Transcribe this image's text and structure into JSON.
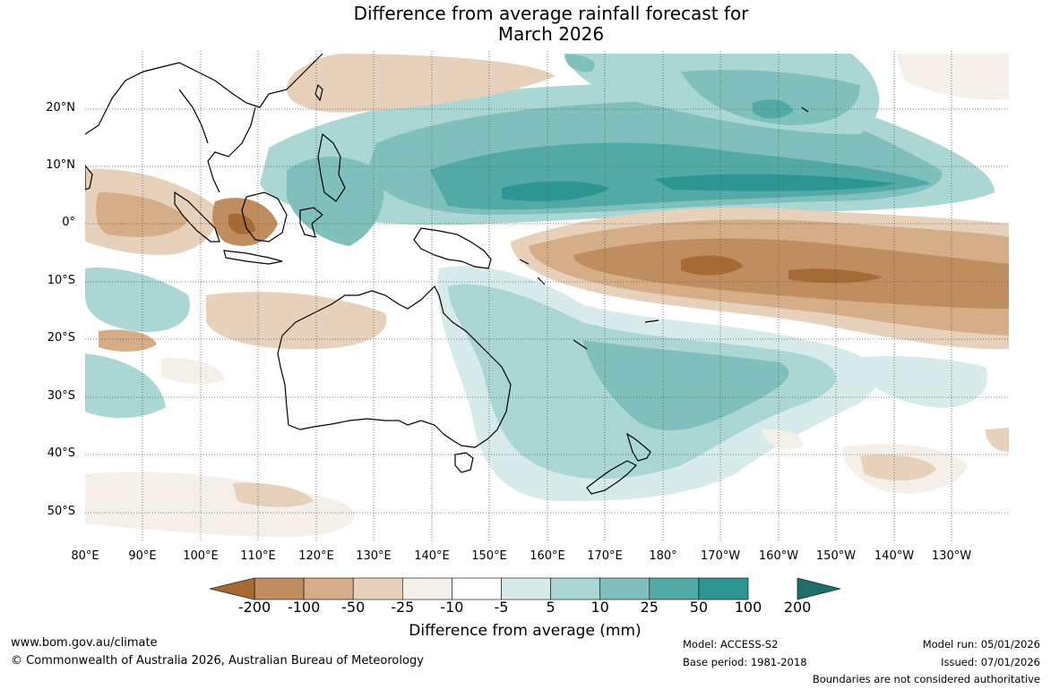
{
  "title": {
    "line1": "Difference from average rainfall forecast for",
    "line2": "March 2026"
  },
  "map": {
    "region": "Indo-Pacific, Australia and New Zealand",
    "lat_labels": [
      "20°N",
      "10°N",
      "0°",
      "10°S",
      "20°S",
      "30°S",
      "40°S",
      "50°S"
    ],
    "lon_labels": [
      "80°E",
      "90°E",
      "100°E",
      "110°E",
      "120°E",
      "130°E",
      "140°E",
      "150°E",
      "160°E",
      "170°E",
      "180°",
      "170°W",
      "160°W",
      "150°W",
      "140°W",
      "130°W"
    ]
  },
  "colorbar": {
    "title": "Difference from average (mm)",
    "labels": [
      "-200",
      "-100",
      "-50",
      "-25",
      "-10",
      "-5",
      "5",
      "10",
      "25",
      "50",
      "100",
      "200"
    ],
    "colors": [
      "#a66b35",
      "#c08d5e",
      "#d5ae87",
      "#e8d1bb",
      "#f4efe8",
      "#ffffff",
      "#d6ebea",
      "#aad6d4",
      "#7fc0bd",
      "#52aaa6",
      "#2e9692",
      "#1e6f6c"
    ]
  },
  "footer": {
    "website": "www.bom.gov.au/climate",
    "copyright": "© Commonwealth of Australia 2026, Australian Bureau of Meteorology",
    "model": "Model: ACCESS-S2",
    "base_period": "Base period: 1981-2018",
    "model_run": "Model run: 05/01/2026",
    "issued": "Issued: 07/01/2026",
    "disclaimer": "Boundaries are not considered authoritative"
  }
}
